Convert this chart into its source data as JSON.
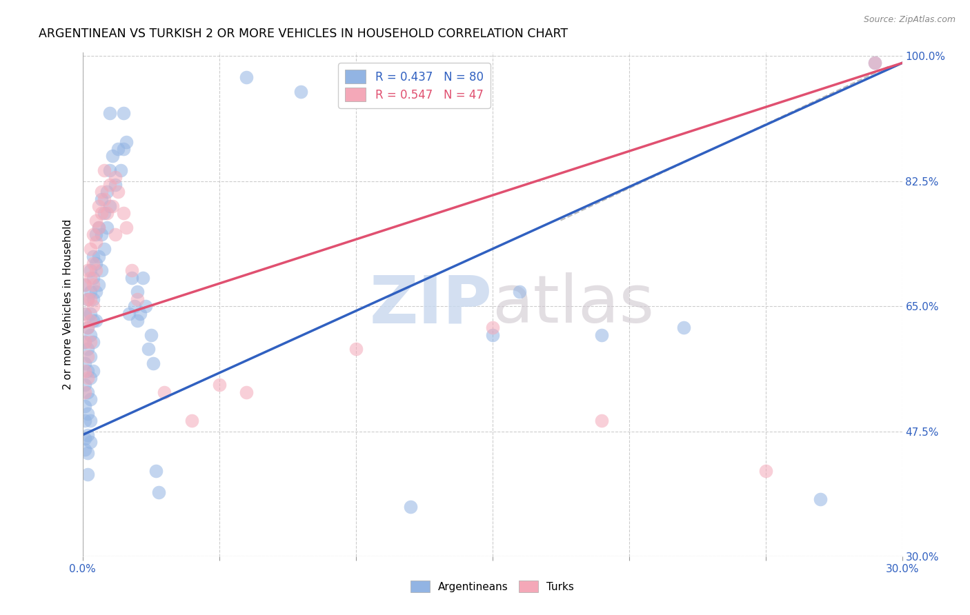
{
  "title": "ARGENTINEAN VS TURKISH 2 OR MORE VEHICLES IN HOUSEHOLD CORRELATION CHART",
  "source": "Source: ZipAtlas.com",
  "ylabel": "2 or more Vehicles in Household",
  "xlim": [
    0.0,
    0.3
  ],
  "ylim": [
    0.3,
    1.005
  ],
  "xticks": [
    0.0,
    0.05,
    0.1,
    0.15,
    0.2,
    0.25,
    0.3
  ],
  "xticklabels": [
    "0.0%",
    "",
    "",
    "",
    "",
    "",
    "30.0%"
  ],
  "yticks_right": [
    0.3,
    0.475,
    0.65,
    0.825,
    1.0
  ],
  "ytick_right_labels": [
    "30.0%",
    "47.5%",
    "65.0%",
    "82.5%",
    "100.0%"
  ],
  "blue_R": 0.437,
  "blue_N": 80,
  "pink_R": 0.547,
  "pink_N": 47,
  "blue_color": "#92B4E3",
  "pink_color": "#F4A8B8",
  "blue_line_color": "#3060C0",
  "pink_line_color": "#E05070",
  "trend_line_color": "#BBBBBB",
  "watermark_zip": "ZIP",
  "watermark_atlas": "atlas",
  "legend_label_blue": "Argentineans",
  "legend_label_pink": "Turks",
  "blue_scatter": [
    [
      0.001,
      0.68
    ],
    [
      0.001,
      0.64
    ],
    [
      0.001,
      0.6
    ],
    [
      0.001,
      0.57
    ],
    [
      0.001,
      0.54
    ],
    [
      0.001,
      0.51
    ],
    [
      0.001,
      0.49
    ],
    [
      0.001,
      0.465
    ],
    [
      0.001,
      0.45
    ],
    [
      0.002,
      0.66
    ],
    [
      0.002,
      0.62
    ],
    [
      0.002,
      0.59
    ],
    [
      0.002,
      0.56
    ],
    [
      0.002,
      0.53
    ],
    [
      0.002,
      0.5
    ],
    [
      0.002,
      0.47
    ],
    [
      0.002,
      0.445
    ],
    [
      0.002,
      0.415
    ],
    [
      0.003,
      0.7
    ],
    [
      0.003,
      0.67
    ],
    [
      0.003,
      0.64
    ],
    [
      0.003,
      0.61
    ],
    [
      0.003,
      0.58
    ],
    [
      0.003,
      0.55
    ],
    [
      0.003,
      0.52
    ],
    [
      0.003,
      0.49
    ],
    [
      0.003,
      0.46
    ],
    [
      0.004,
      0.72
    ],
    [
      0.004,
      0.69
    ],
    [
      0.004,
      0.66
    ],
    [
      0.004,
      0.63
    ],
    [
      0.004,
      0.6
    ],
    [
      0.004,
      0.56
    ],
    [
      0.005,
      0.75
    ],
    [
      0.005,
      0.71
    ],
    [
      0.005,
      0.67
    ],
    [
      0.005,
      0.63
    ],
    [
      0.006,
      0.76
    ],
    [
      0.006,
      0.72
    ],
    [
      0.006,
      0.68
    ],
    [
      0.007,
      0.8
    ],
    [
      0.007,
      0.75
    ],
    [
      0.007,
      0.7
    ],
    [
      0.008,
      0.78
    ],
    [
      0.008,
      0.73
    ],
    [
      0.009,
      0.81
    ],
    [
      0.009,
      0.76
    ],
    [
      0.01,
      0.84
    ],
    [
      0.01,
      0.79
    ],
    [
      0.01,
      0.92
    ],
    [
      0.011,
      0.86
    ],
    [
      0.012,
      0.82
    ],
    [
      0.013,
      0.87
    ],
    [
      0.014,
      0.84
    ],
    [
      0.015,
      0.87
    ],
    [
      0.015,
      0.92
    ],
    [
      0.016,
      0.88
    ],
    [
      0.017,
      0.64
    ],
    [
      0.018,
      0.69
    ],
    [
      0.019,
      0.65
    ],
    [
      0.02,
      0.67
    ],
    [
      0.02,
      0.63
    ],
    [
      0.021,
      0.64
    ],
    [
      0.022,
      0.69
    ],
    [
      0.023,
      0.65
    ],
    [
      0.024,
      0.59
    ],
    [
      0.025,
      0.61
    ],
    [
      0.026,
      0.57
    ],
    [
      0.027,
      0.42
    ],
    [
      0.028,
      0.39
    ],
    [
      0.06,
      0.97
    ],
    [
      0.08,
      0.95
    ],
    [
      0.1,
      0.96
    ],
    [
      0.12,
      0.37
    ],
    [
      0.15,
      0.61
    ],
    [
      0.16,
      0.67
    ],
    [
      0.19,
      0.61
    ],
    [
      0.22,
      0.62
    ],
    [
      0.27,
      0.38
    ],
    [
      0.29,
      0.99
    ]
  ],
  "pink_scatter": [
    [
      0.001,
      0.68
    ],
    [
      0.001,
      0.64
    ],
    [
      0.001,
      0.6
    ],
    [
      0.001,
      0.56
    ],
    [
      0.001,
      0.53
    ],
    [
      0.002,
      0.7
    ],
    [
      0.002,
      0.66
    ],
    [
      0.002,
      0.62
    ],
    [
      0.002,
      0.58
    ],
    [
      0.002,
      0.55
    ],
    [
      0.003,
      0.73
    ],
    [
      0.003,
      0.69
    ],
    [
      0.003,
      0.66
    ],
    [
      0.003,
      0.63
    ],
    [
      0.003,
      0.6
    ],
    [
      0.004,
      0.75
    ],
    [
      0.004,
      0.71
    ],
    [
      0.004,
      0.68
    ],
    [
      0.004,
      0.65
    ],
    [
      0.005,
      0.77
    ],
    [
      0.005,
      0.74
    ],
    [
      0.005,
      0.7
    ],
    [
      0.006,
      0.79
    ],
    [
      0.006,
      0.76
    ],
    [
      0.007,
      0.81
    ],
    [
      0.007,
      0.78
    ],
    [
      0.008,
      0.84
    ],
    [
      0.008,
      0.8
    ],
    [
      0.009,
      0.78
    ],
    [
      0.01,
      0.82
    ],
    [
      0.011,
      0.79
    ],
    [
      0.012,
      0.75
    ],
    [
      0.012,
      0.83
    ],
    [
      0.013,
      0.81
    ],
    [
      0.015,
      0.78
    ],
    [
      0.016,
      0.76
    ],
    [
      0.018,
      0.7
    ],
    [
      0.02,
      0.66
    ],
    [
      0.03,
      0.53
    ],
    [
      0.04,
      0.49
    ],
    [
      0.05,
      0.54
    ],
    [
      0.06,
      0.53
    ],
    [
      0.1,
      0.59
    ],
    [
      0.15,
      0.62
    ],
    [
      0.19,
      0.49
    ],
    [
      0.25,
      0.42
    ],
    [
      0.29,
      0.99
    ]
  ],
  "blue_line": [
    [
      0.0,
      0.47
    ],
    [
      0.3,
      0.99
    ]
  ],
  "pink_line": [
    [
      0.0,
      0.62
    ],
    [
      0.3,
      0.99
    ]
  ],
  "gray_line": [
    [
      0.175,
      0.77
    ],
    [
      0.295,
      0.985
    ]
  ]
}
